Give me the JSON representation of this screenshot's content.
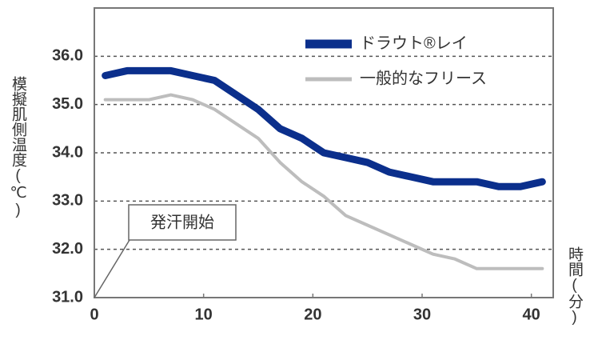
{
  "chart_data": {
    "type": "line",
    "x_label": "時間(分)",
    "y_label": "模擬肌側温度(℃)",
    "x": [
      1,
      3,
      5,
      7,
      9,
      11,
      13,
      15,
      17,
      19,
      21,
      23,
      25,
      27,
      29,
      31,
      33,
      35,
      37,
      39,
      41
    ],
    "series": [
      {
        "name": "ドラウト®レイ",
        "color": "#0b2f8c",
        "values": [
          35.6,
          35.7,
          35.7,
          35.7,
          35.6,
          35.5,
          35.2,
          34.9,
          34.5,
          34.3,
          34.0,
          33.9,
          33.8,
          33.6,
          33.5,
          33.4,
          33.4,
          33.4,
          33.3,
          33.3,
          33.4
        ]
      },
      {
        "name": "一般的なフリース",
        "color": "#bdbdbd",
        "values": [
          35.1,
          35.1,
          35.1,
          35.2,
          35.1,
          34.9,
          34.6,
          34.3,
          33.8,
          33.4,
          33.1,
          32.7,
          32.5,
          32.3,
          32.1,
          31.9,
          31.8,
          31.6,
          31.6,
          31.6,
          31.6
        ]
      }
    ],
    "xlim": [
      0,
      42
    ],
    "ylim": [
      31,
      37
    ],
    "xticks": [
      0,
      10,
      20,
      30,
      40
    ],
    "yticks": [
      {
        "value": 31,
        "label": "31.0"
      },
      {
        "value": 32,
        "label": "32.0"
      },
      {
        "value": 33,
        "label": "33.0"
      },
      {
        "value": 34,
        "label": "34.0"
      },
      {
        "value": 35,
        "label": "35.0"
      },
      {
        "value": 36,
        "label": "36.0"
      }
    ],
    "grid": true,
    "legend": "upper right",
    "annotation": "発汗開始"
  }
}
